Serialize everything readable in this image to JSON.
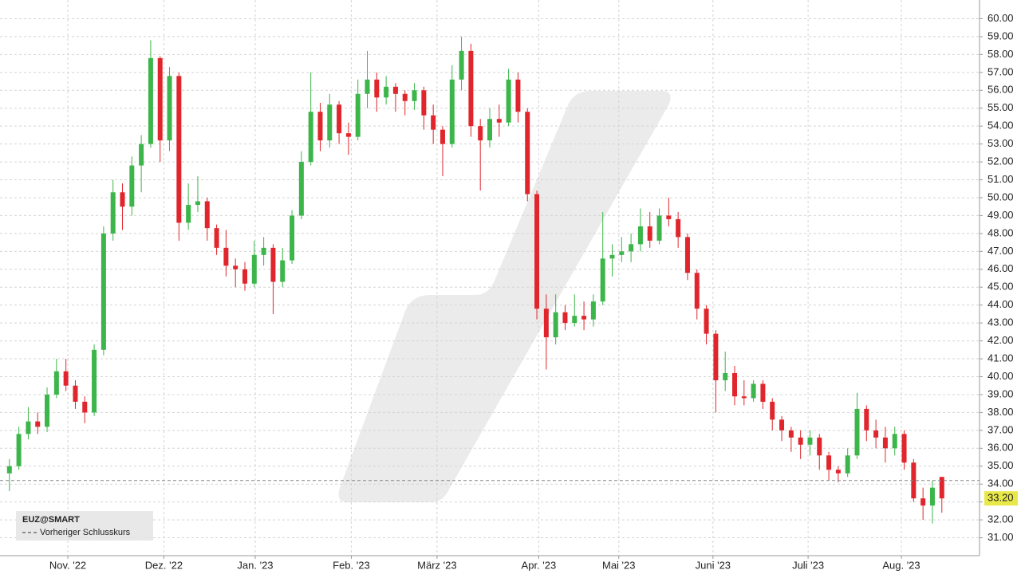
{
  "chart_data": {
    "type": "candlestick",
    "symbol": "EUZ@SMART",
    "legend_entry": "Vorheriger Schlusskurs",
    "up_color": "#3cb54a",
    "down_color": "#e0262c",
    "grid": true,
    "ylim": [
      30,
      60.6
    ],
    "xlim": [
      -1,
      103
    ],
    "yticks": [
      {
        "value": 31,
        "label": "31.00"
      },
      {
        "value": 32,
        "label": "32.00"
      },
      {
        "value": 33,
        "label": "33.00"
      },
      {
        "value": 34,
        "label": "34.00"
      },
      {
        "value": 35,
        "label": "35.00"
      },
      {
        "value": 36,
        "label": "36.00"
      },
      {
        "value": 37,
        "label": "37.00"
      },
      {
        "value": 38,
        "label": "38.00"
      },
      {
        "value": 39,
        "label": "39.00"
      },
      {
        "value": 40,
        "label": "40.00"
      },
      {
        "value": 41,
        "label": "41.00"
      },
      {
        "value": 42,
        "label": "42.00"
      },
      {
        "value": 43,
        "label": "43.00"
      },
      {
        "value": 44,
        "label": "44.00"
      },
      {
        "value": 45,
        "label": "45.00"
      },
      {
        "value": 46,
        "label": "46.00"
      },
      {
        "value": 47,
        "label": "47.00"
      },
      {
        "value": 48,
        "label": "48.00"
      },
      {
        "value": 49,
        "label": "49.00"
      },
      {
        "value": 50,
        "label": "50.00"
      },
      {
        "value": 51,
        "label": "51.00"
      },
      {
        "value": 52,
        "label": "52.00"
      },
      {
        "value": 53,
        "label": "53.00"
      },
      {
        "value": 54,
        "label": "54.00"
      },
      {
        "value": 55,
        "label": "55.00"
      },
      {
        "value": 56,
        "label": "56.00"
      },
      {
        "value": 57,
        "label": "57.00"
      },
      {
        "value": 58,
        "label": "58.00"
      },
      {
        "value": 59,
        "label": "59.00"
      },
      {
        "value": 60,
        "label": "60.00"
      }
    ],
    "xticks": [
      {
        "value": 6.2,
        "label": "Nov. '22"
      },
      {
        "value": 16.4,
        "label": "Dez. '22"
      },
      {
        "value": 26.1,
        "label": "Jan. '23"
      },
      {
        "value": 36.3,
        "label": "Feb. '23"
      },
      {
        "value": 45.4,
        "label": "März '23"
      },
      {
        "value": 56.2,
        "label": "Apr. '23"
      },
      {
        "value": 64.7,
        "label": "Mai '23"
      },
      {
        "value": 74.7,
        "label": "Juni '23"
      },
      {
        "value": 84.8,
        "label": "Juli '23"
      },
      {
        "value": 94.7,
        "label": "Aug. '23"
      }
    ],
    "previous_close": 34.2,
    "last_price": {
      "value": 33.2,
      "label": "33.20"
    },
    "open": [
      34.6,
      35.0,
      36.8,
      37.5,
      37.2,
      39.0,
      40.3,
      39.5,
      38.6,
      38.0,
      41.5,
      48.0,
      50.3,
      49.5,
      51.8,
      53.0,
      57.8,
      53.2,
      56.8,
      48.6,
      49.6,
      49.8,
      48.3,
      47.2,
      46.2,
      46.0,
      45.2,
      46.8,
      47.2,
      45.3,
      46.5,
      49.0,
      52.0,
      54.8,
      53.2,
      55.2,
      53.6,
      53.4,
      55.8,
      56.6,
      55.6,
      56.2,
      55.8,
      55.4,
      56.0,
      54.6,
      53.8,
      53.0,
      56.6,
      58.2,
      54.0,
      53.2,
      54.4,
      54.2,
      56.6,
      54.8,
      50.2,
      43.8,
      42.2,
      43.6,
      43.0,
      43.4,
      43.2,
      44.2,
      46.6,
      46.8,
      47.0,
      47.4,
      48.4,
      47.6,
      49.0,
      48.8,
      47.8,
      45.8,
      43.8,
      42.4,
      39.8,
      40.2,
      38.9,
      38.8,
      39.6,
      38.6,
      37.6,
      37.0,
      36.6,
      36.2,
      36.6,
      35.6,
      34.8,
      34.6,
      35.6,
      38.2,
      37.0,
      36.6,
      36.0,
      36.8,
      35.2,
      33.2,
      32.8,
      34.4
    ],
    "high": [
      35.4,
      37.2,
      38.3,
      38.0,
      39.4,
      41.0,
      41.0,
      39.8,
      38.9,
      41.8,
      48.4,
      51.0,
      50.8,
      52.3,
      53.5,
      58.8,
      57.9,
      57.3,
      57.0,
      50.8,
      51.2,
      50.0,
      48.5,
      48.2,
      46.6,
      46.4,
      47.6,
      47.8,
      47.4,
      47.2,
      49.3,
      52.6,
      57.0,
      55.3,
      55.8,
      55.4,
      54.2,
      56.6,
      58.2,
      57.0,
      56.8,
      56.4,
      56.0,
      56.4,
      56.2,
      55.2,
      54.0,
      57.4,
      59.0,
      58.6,
      54.4,
      55.0,
      55.2,
      57.2,
      57.0,
      55.0,
      50.4,
      44.6,
      44.6,
      44.0,
      44.6,
      44.2,
      44.6,
      49.2,
      47.4,
      47.8,
      48.0,
      49.4,
      49.2,
      49.4,
      50.0,
      49.2,
      48.0,
      46.0,
      44.0,
      42.6,
      41.4,
      40.6,
      39.8,
      39.8,
      39.8,
      38.8,
      37.8,
      37.2,
      37.0,
      37.0,
      36.8,
      35.8,
      35.0,
      36.0,
      39.1,
      38.4,
      37.6,
      37.2,
      37.2,
      37.0,
      35.4,
      33.8,
      34.2,
      34.4
    ],
    "low": [
      33.6,
      34.8,
      36.5,
      36.8,
      36.9,
      38.8,
      39.2,
      38.2,
      37.4,
      37.8,
      41.2,
      47.6,
      48.2,
      49.0,
      50.3,
      52.8,
      52.0,
      52.6,
      47.6,
      48.2,
      49.2,
      47.6,
      46.8,
      45.6,
      45.0,
      44.8,
      45.0,
      46.2,
      43.5,
      45.0,
      46.3,
      48.8,
      51.8,
      52.6,
      52.8,
      53.0,
      52.4,
      53.2,
      55.0,
      54.8,
      55.2,
      54.8,
      54.6,
      54.9,
      53.8,
      53.0,
      51.2,
      52.8,
      56.0,
      53.4,
      50.4,
      52.8,
      53.4,
      54.0,
      54.2,
      49.8,
      43.2,
      40.4,
      41.8,
      42.6,
      42.8,
      42.6,
      42.8,
      44.0,
      45.6,
      46.4,
      46.4,
      47.0,
      47.2,
      47.4,
      48.4,
      47.2,
      45.4,
      43.2,
      41.8,
      38.0,
      39.2,
      38.4,
      38.4,
      38.6,
      38.2,
      37.0,
      36.4,
      35.8,
      35.4,
      35.6,
      34.8,
      34.2,
      34.1,
      34.4,
      35.4,
      36.4,
      36.0,
      35.2,
      35.6,
      34.8,
      33.0,
      32.0,
      31.8,
      32.4
    ],
    "close": [
      35.0,
      36.8,
      37.5,
      37.2,
      39.0,
      40.3,
      39.5,
      38.6,
      38.0,
      41.5,
      48.0,
      50.3,
      49.5,
      51.8,
      53.0,
      57.8,
      53.2,
      56.8,
      48.6,
      49.6,
      49.8,
      48.3,
      47.2,
      46.2,
      46.0,
      45.2,
      46.8,
      47.2,
      45.3,
      46.5,
      49.0,
      52.0,
      54.8,
      53.2,
      55.2,
      53.6,
      53.4,
      55.8,
      56.6,
      55.6,
      56.2,
      55.8,
      55.4,
      56.0,
      54.6,
      53.8,
      53.0,
      56.6,
      58.2,
      54.0,
      53.2,
      54.4,
      54.2,
      56.6,
      54.8,
      50.2,
      43.8,
      42.2,
      43.6,
      43.0,
      43.4,
      43.2,
      44.2,
      46.6,
      46.8,
      47.0,
      47.4,
      48.4,
      47.6,
      49.0,
      48.8,
      47.8,
      45.8,
      43.8,
      42.4,
      39.8,
      40.2,
      38.9,
      38.8,
      39.6,
      38.6,
      37.6,
      37.0,
      36.6,
      36.2,
      36.6,
      35.6,
      34.8,
      34.6,
      35.6,
      38.2,
      37.0,
      36.6,
      36.0,
      36.8,
      35.2,
      33.2,
      32.8,
      33.8,
      33.2
    ]
  }
}
